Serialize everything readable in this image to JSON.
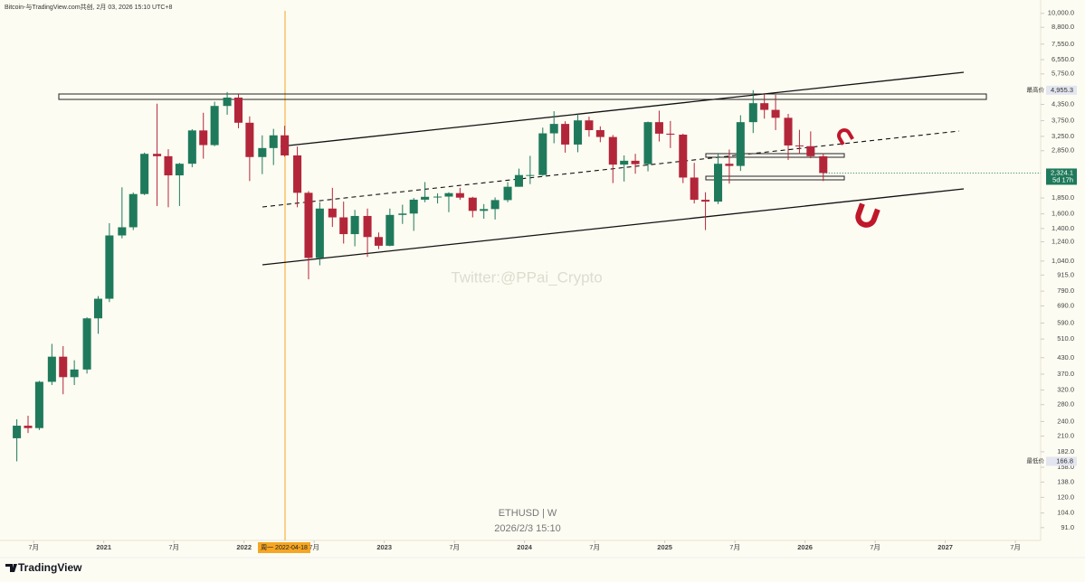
{
  "header": "Bitcoin-与TradingView.com共创, 2月 03, 2026 15:10 UTC+8",
  "watermark": "Twitter:@PPai_Crypto",
  "symbol": "ETHUSD | W",
  "timestamp": "2026/2/3 15:10",
  "crosshair_label": "周一 2022-04-18",
  "brand": "TradingView",
  "chart_data": {
    "type": "candlestick",
    "log_scale": true,
    "up_color": "#1f7a5c",
    "down_color": "#b3263a",
    "xlim": [
      2020.26,
      2027.68
    ],
    "xticks": [
      {
        "value": 2020.5,
        "label": "7月"
      },
      2021,
      {
        "value": 2021.5,
        "label": "7月"
      },
      2022,
      {
        "value": 2022.5,
        "label": "7月"
      },
      2023,
      {
        "value": 2023.5,
        "label": "7月"
      },
      2024,
      {
        "value": 2024.5,
        "label": "7月"
      },
      2025,
      {
        "value": 2025.5,
        "label": "7月"
      },
      2026,
      {
        "value": 2026.5,
        "label": "7月"
      },
      2027,
      {
        "value": 2027.5,
        "label": "7月"
      }
    ],
    "ylim": [
      83,
      10400
    ],
    "yticks": [
      {
        "value": 10000,
        "label": "10,000.0"
      },
      {
        "value": 8800,
        "label": "8,800.0"
      },
      {
        "value": 7550,
        "label": "7,550.0"
      },
      {
        "value": 6550,
        "label": "6,550.0"
      },
      {
        "value": 5750,
        "label": "5,750.0"
      },
      {
        "value": 4350,
        "label": "4,350.0"
      },
      {
        "value": 3750,
        "label": "3,750.0"
      },
      {
        "value": 3250,
        "label": "3,250.0"
      },
      {
        "value": 2850,
        "label": "2,850.0"
      },
      {
        "value": 1850,
        "label": "1,850.0"
      },
      {
        "value": 1600,
        "label": "1,600.0"
      },
      {
        "value": 1400,
        "label": "1,400.0"
      },
      {
        "value": 1240,
        "label": "1,240.0"
      },
      {
        "value": 1040,
        "label": "1,040.0"
      },
      {
        "value": 915,
        "label": "915.0"
      },
      {
        "value": 790,
        "label": "790.0"
      },
      {
        "value": 690,
        "label": "690.0"
      },
      {
        "value": 590,
        "label": "590.0"
      },
      {
        "value": 510,
        "label": "510.0"
      },
      {
        "value": 430,
        "label": "430.0"
      },
      {
        "value": 370,
        "label": "370.0"
      },
      {
        "value": 320,
        "label": "320.0"
      },
      {
        "value": 280,
        "label": "280.0"
      },
      {
        "value": 240,
        "label": "240.0"
      },
      {
        "value": 210,
        "label": "210.0"
      },
      {
        "value": 182,
        "label": "182.0"
      },
      {
        "value": 158,
        "label": "158.0"
      },
      {
        "value": 138,
        "label": "138.0"
      },
      {
        "value": 120,
        "label": "120.0"
      },
      {
        "value": 104,
        "label": "104.0"
      },
      {
        "value": 91,
        "label": "91.0"
      }
    ],
    "x": [
      2020.38,
      2020.46,
      2020.54,
      2020.63,
      2020.71,
      2020.79,
      2020.88,
      2020.96,
      2021.04,
      2021.13,
      2021.21,
      2021.29,
      2021.38,
      2021.46,
      2021.54,
      2021.63,
      2021.71,
      2021.79,
      2021.88,
      2021.96,
      2022.04,
      2022.13,
      2022.21,
      2022.29,
      2022.38,
      2022.46,
      2022.54,
      2022.63,
      2022.71,
      2022.79,
      2022.88,
      2022.96,
      2023.04,
      2023.13,
      2023.21,
      2023.29,
      2023.38,
      2023.46,
      2023.54,
      2023.63,
      2023.71,
      2023.79,
      2023.88,
      2023.96,
      2024.04,
      2024.13,
      2024.21,
      2024.29,
      2024.38,
      2024.46,
      2024.54,
      2024.63,
      2024.71,
      2024.79,
      2024.88,
      2024.96,
      2025.04,
      2025.13,
      2025.21,
      2025.29,
      2025.38,
      2025.46,
      2025.54,
      2025.63,
      2025.71,
      2025.79,
      2025.88,
      2025.96,
      2026.04,
      2026.13
    ],
    "open": [
      206,
      231,
      226,
      345,
      434,
      360,
      386,
      616,
      737,
      1314,
      1416,
      1918,
      2770,
      2710,
      2275,
      2530,
      3430,
      3000,
      4290,
      4630,
      3680,
      2690,
      2920,
      3280,
      2730,
      1940,
      1070,
      1680,
      1550,
      1330,
      1570,
      1295,
      1196,
      1585,
      1605,
      1822,
      1870,
      1874,
      1934,
      1856,
      1645,
      1672,
      1815,
      2050,
      2282,
      2282,
      3340,
      3640,
      3015,
      3760,
      3440,
      3230,
      2510,
      2600,
      2520,
      3700,
      3330,
      3300,
      2230,
      1820,
      1790,
      2530,
      2480,
      3700,
      4400,
      4140,
      3850,
      2990,
      2970,
      2710
    ],
    "high": [
      245,
      253,
      348,
      488,
      478,
      420,
      622,
      755,
      1470,
      2040,
      1945,
      2800,
      4380,
      2890,
      2550,
      3470,
      4030,
      4460,
      4870,
      4780,
      3900,
      3280,
      3480,
      3580,
      2960,
      1970,
      1780,
      2030,
      1790,
      1660,
      1680,
      1350,
      1680,
      1740,
      1850,
      2140,
      1930,
      1950,
      2030,
      1870,
      1750,
      1860,
      2140,
      2420,
      2720,
      3520,
      4090,
      3730,
      3980,
      3890,
      3560,
      3290,
      2730,
      2770,
      3720,
      4110,
      3740,
      3330,
      2550,
      1950,
      2790,
      2880,
      3940,
      4955.3,
      4770,
      4750,
      3990,
      3450,
      3400,
      2780
    ],
    "low": [
      166.8,
      216,
      222,
      335,
      308,
      335,
      372,
      535,
      715,
      1280,
      1380,
      1900,
      1720,
      1700,
      1720,
      2450,
      2650,
      2970,
      3960,
      3500,
      2160,
      2300,
      2500,
      2700,
      1700,
      880,
      1000,
      1420,
      1220,
      1190,
      1080,
      1160,
      1190,
      1460,
      1370,
      1780,
      1760,
      1625,
      1820,
      1550,
      1530,
      1520,
      1780,
      2050,
      2100,
      2270,
      3050,
      2800,
      2810,
      3240,
      3080,
      2120,
      2150,
      2310,
      2360,
      3100,
      2920,
      2120,
      1760,
      1380,
      1750,
      2110,
      2370,
      3350,
      3820,
      3440,
      2620,
      2770,
      2660,
      2160
    ],
    "close": [
      231,
      226,
      345,
      434,
      360,
      386,
      616,
      737,
      1314,
      1416,
      1918,
      2770,
      2710,
      2275,
      2530,
      3430,
      3000,
      4290,
      4630,
      3680,
      2690,
      2920,
      3280,
      2730,
      1940,
      1070,
      1680,
      1550,
      1330,
      1570,
      1295,
      1196,
      1585,
      1605,
      1822,
      1870,
      1874,
      1934,
      1856,
      1645,
      1672,
      1815,
      2050,
      2282,
      2282,
      3340,
      3640,
      3015,
      3760,
      3440,
      3230,
      2510,
      2600,
      2520,
      3700,
      3330,
      3300,
      2230,
      1820,
      1790,
      2530,
      2480,
      3700,
      4400,
      4140,
      3850,
      2990,
      2970,
      2710,
      2324.1
    ],
    "high_marker": {
      "name": "最高价",
      "value": 4955.3,
      "value_label": "4,955.3"
    },
    "low_marker": {
      "name": "最低价",
      "value": 166.8,
      "value_label": "166.8"
    },
    "last_price": {
      "value": 2324.1,
      "value_label": "2,324.1",
      "countdown": "5d 17h"
    }
  }
}
